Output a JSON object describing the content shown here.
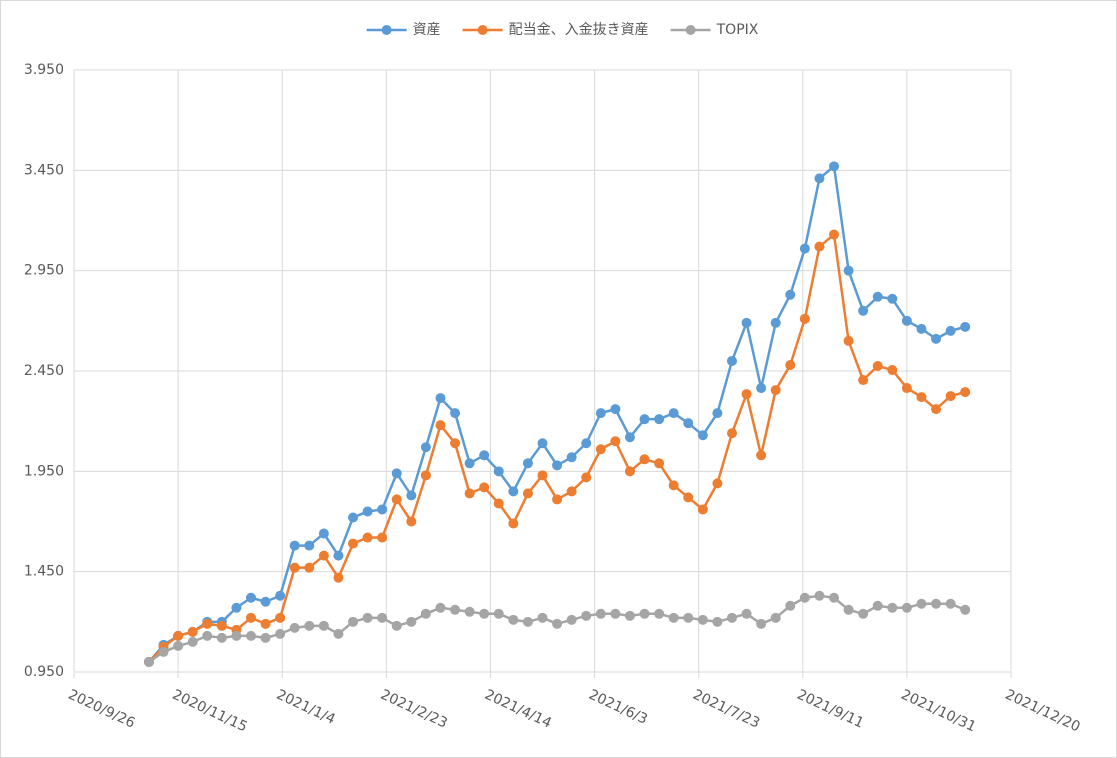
{
  "chart_data": {
    "type": "line",
    "x": [
      "2020/11/1",
      "2020/11/8",
      "2020/11/15",
      "2020/11/22",
      "2020/11/29",
      "2020/12/6",
      "2020/12/13",
      "2020/12/20",
      "2020/12/27",
      "2021/1/3",
      "2021/1/10",
      "2021/1/17",
      "2021/1/24",
      "2021/1/31",
      "2021/2/7",
      "2021/2/14",
      "2021/2/21",
      "2021/2/28",
      "2021/3/7",
      "2021/3/14",
      "2021/3/21",
      "2021/3/28",
      "2021/4/4",
      "2021/4/11",
      "2021/4/18",
      "2021/4/25",
      "2021/5/2",
      "2021/5/9",
      "2021/5/16",
      "2021/5/23",
      "2021/5/30",
      "2021/6/6",
      "2021/6/13",
      "2021/6/20",
      "2021/6/27",
      "2021/7/4",
      "2021/7/11",
      "2021/7/18",
      "2021/7/25",
      "2021/8/1",
      "2021/8/8",
      "2021/8/15",
      "2021/8/22",
      "2021/8/29",
      "2021/9/5",
      "2021/9/12",
      "2021/9/19",
      "2021/9/26",
      "2021/10/3",
      "2021/10/10",
      "2021/10/17",
      "2021/10/24",
      "2021/10/31",
      "2021/11/7",
      "2021/11/14",
      "2021/11/21",
      "2021/11/28"
    ],
    "series": [
      {
        "name": "資産",
        "color": "#5b9bd5",
        "values": [
          1.0,
          1.085,
          1.13,
          1.15,
          1.2,
          1.2,
          1.27,
          1.32,
          1.3,
          1.33,
          1.58,
          1.58,
          1.64,
          1.53,
          1.72,
          1.75,
          1.76,
          1.94,
          1.83,
          2.07,
          2.315,
          2.24,
          1.99,
          2.03,
          1.95,
          1.85,
          1.99,
          2.09,
          1.98,
          2.02,
          2.09,
          2.24,
          2.26,
          2.12,
          2.21,
          2.21,
          2.24,
          2.19,
          2.13,
          2.24,
          2.5,
          2.69,
          2.365,
          2.69,
          2.83,
          3.06,
          3.41,
          3.47,
          2.95,
          2.75,
          2.82,
          2.81,
          2.7,
          2.66,
          2.61,
          2.65,
          2.67
        ]
      },
      {
        "name": "配当金、入金抜き資産",
        "color": "#ed7d31",
        "values": [
          1.0,
          1.075,
          1.13,
          1.15,
          1.19,
          1.18,
          1.16,
          1.22,
          1.19,
          1.22,
          1.47,
          1.47,
          1.53,
          1.42,
          1.59,
          1.62,
          1.62,
          1.81,
          1.7,
          1.93,
          2.18,
          2.09,
          1.84,
          1.87,
          1.79,
          1.69,
          1.84,
          1.93,
          1.81,
          1.85,
          1.92,
          2.06,
          2.1,
          1.95,
          2.01,
          1.99,
          1.88,
          1.82,
          1.76,
          1.89,
          2.14,
          2.335,
          2.03,
          2.355,
          2.48,
          2.71,
          3.07,
          3.13,
          2.6,
          2.405,
          2.475,
          2.455,
          2.365,
          2.32,
          2.26,
          2.325,
          2.345
        ]
      },
      {
        "name": "TOPIX",
        "color": "#a5a5a5",
        "values": [
          1.0,
          1.05,
          1.08,
          1.1,
          1.13,
          1.12,
          1.13,
          1.13,
          1.12,
          1.14,
          1.17,
          1.18,
          1.18,
          1.14,
          1.2,
          1.22,
          1.22,
          1.18,
          1.2,
          1.24,
          1.27,
          1.26,
          1.25,
          1.24,
          1.24,
          1.21,
          1.2,
          1.22,
          1.19,
          1.21,
          1.23,
          1.24,
          1.24,
          1.23,
          1.24,
          1.24,
          1.22,
          1.22,
          1.21,
          1.2,
          1.22,
          1.24,
          1.19,
          1.22,
          1.28,
          1.32,
          1.33,
          1.32,
          1.26,
          1.24,
          1.28,
          1.27,
          1.27,
          1.29,
          1.29,
          1.29,
          1.26
        ]
      }
    ],
    "xlim": [
      "2020/9/26",
      "2021/12/20"
    ],
    "xticks": [
      "2020/9/26",
      "2020/11/15",
      "2021/1/4",
      "2021/2/23",
      "2021/4/14",
      "2021/6/3",
      "2021/7/23",
      "2021/9/11",
      "2021/10/31",
      "2021/12/20"
    ],
    "ylim": [
      0.95,
      3.95
    ],
    "yticks": [
      {
        "value": 0.95,
        "label": "0.950"
      },
      {
        "value": 1.45,
        "label": "1.450"
      },
      {
        "value": 1.95,
        "label": "1.950"
      },
      {
        "value": 2.45,
        "label": "2.450"
      },
      {
        "value": 2.95,
        "label": "2.950"
      },
      {
        "value": 3.45,
        "label": "3.450"
      },
      {
        "value": 3.95,
        "label": "3.950"
      }
    ],
    "grid": true,
    "legend": "top"
  }
}
